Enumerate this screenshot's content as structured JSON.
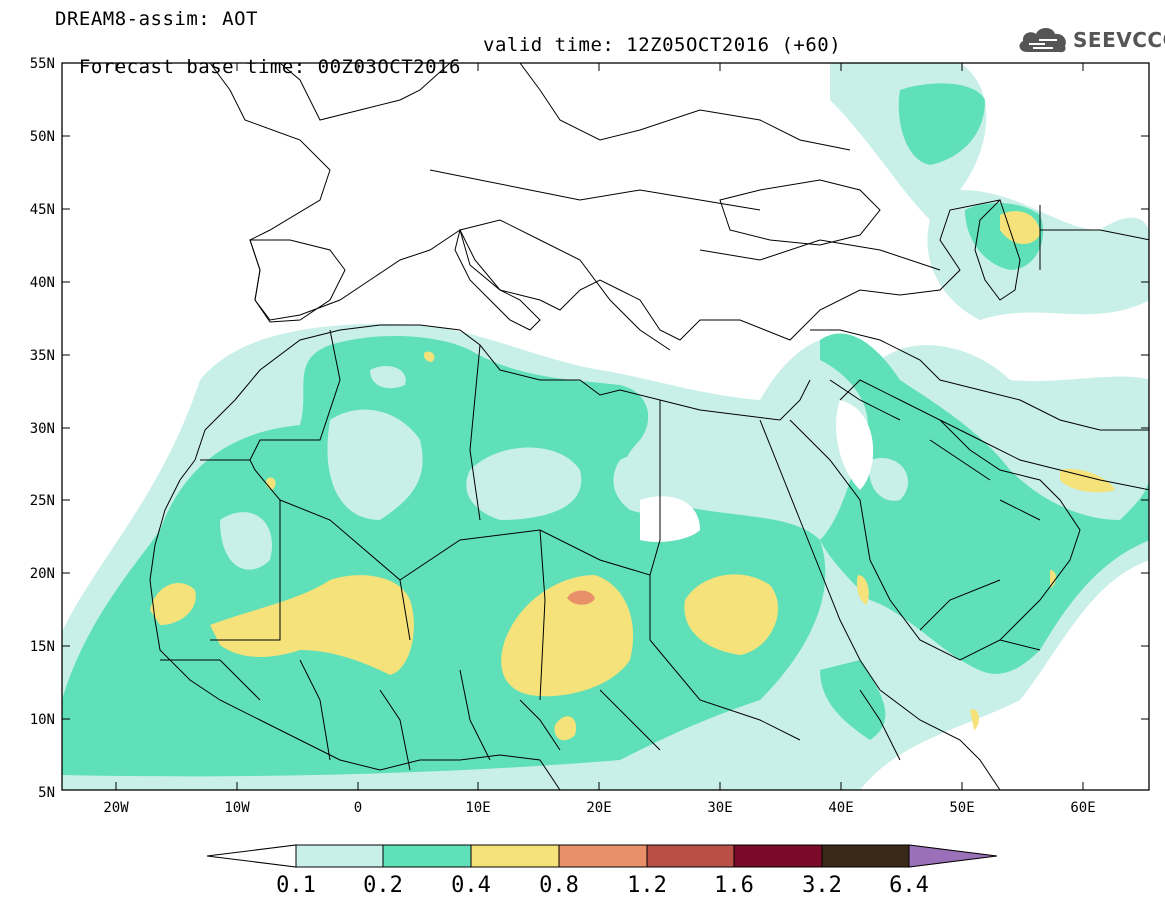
{
  "header": {
    "line1": "DREAM8-assim: AOT",
    "base_time": "Forecast base time: 00Z03OCT2016",
    "valid_time": "valid time: 12Z05OCT2016 (+60)"
  },
  "logo": {
    "text": "SEEVCCC",
    "icon": "cloud-icon"
  },
  "map": {
    "lon_range": [
      -25,
      65
    ],
    "lat_range": [
      5,
      55
    ],
    "lat_labels": [
      "55N",
      "50N",
      "45N",
      "40N",
      "35N",
      "30N",
      "25N",
      "20N",
      "15N",
      "10N",
      "5N"
    ],
    "lon_labels": [
      "20W",
      "10W",
      "0",
      "10E",
      "20E",
      "30E",
      "40E",
      "50E",
      "60E"
    ],
    "land_color": "#ffffff",
    "border_color": "#000000"
  },
  "colorbar": {
    "labels": [
      "0.1",
      "0.2",
      "0.4",
      "0.8",
      "1.2",
      "1.6",
      "3.2",
      "6.4"
    ],
    "colors": [
      "#ffffff",
      "#c8f0e8",
      "#5fe0b8",
      "#f5e27a",
      "#e8906a",
      "#b85048",
      "#7a0a28",
      "#3a2818",
      "#9a70b8"
    ]
  }
}
